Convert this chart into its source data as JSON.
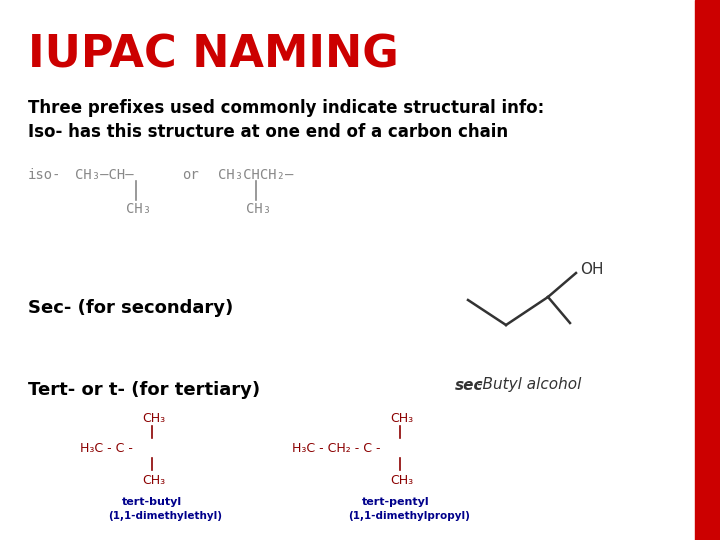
{
  "title": "IUPAC NAMING",
  "title_color": "#cc0000",
  "title_fontsize": 32,
  "title_weight": "bold",
  "bg_color": "#ffffff",
  "sidebar_color": "#cc0000",
  "text_color": "#000000",
  "dark_red": "#8b0000",
  "blue": "#00008b",
  "line1": "Three prefixes used commonly indicate structural info:",
  "line2": "Iso- has this structure at one end of a carbon chain",
  "sec_label": "Sec- (for secondary)",
  "tert_label": "Tert- or t- (for tertiary)",
  "sec_butyl_label": "-Butyl alcohol"
}
